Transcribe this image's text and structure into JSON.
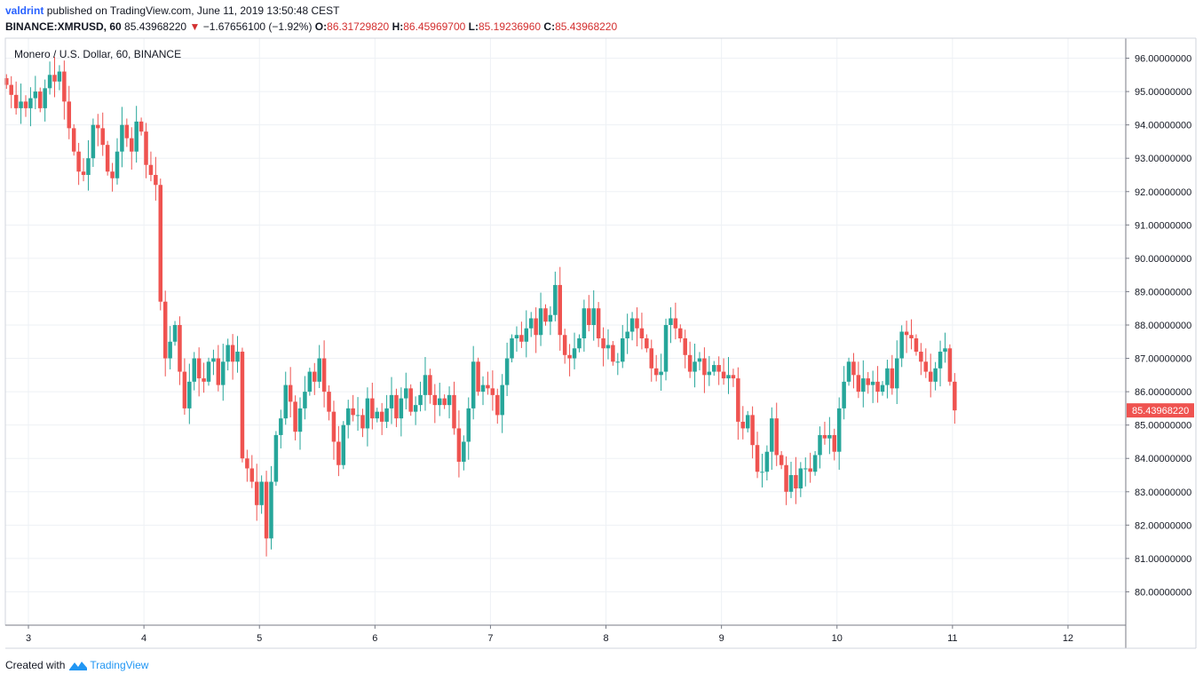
{
  "header": {
    "author": "valdrint",
    "published_text": "published on TradingView.com, June 11, 2019 13:50:48 CEST",
    "symbol": "BINANCE:XMRUSD, 60",
    "last_price": "85.43968220",
    "change_arrow": "▼",
    "change": "−1.67656100 (−1.92%)",
    "o_label": "O:",
    "o_value": "86.31729820",
    "h_label": "H:",
    "h_value": "86.45969700",
    "l_label": "L:",
    "l_value": "85.19236960",
    "c_label": "C:",
    "c_value": "85.43968220"
  },
  "footer": {
    "created_with": "Created with",
    "brand": "TradingView"
  },
  "colors": {
    "up": "#26a69a",
    "down": "#ef5350",
    "grid": "#eef1f5",
    "axis": "#787b86",
    "price_tag": "#ef5350"
  },
  "chart_data": {
    "type": "candlestick",
    "title": "Monero / U.S. Dollar, 60, BINANCE",
    "xlabel": "",
    "ylabel": "",
    "x_ticks": [
      "3",
      "4",
      "5",
      "6",
      "7",
      "8",
      "9",
      "10",
      "11",
      "12"
    ],
    "y_ticks": [
      "80.00000000",
      "81.00000000",
      "82.00000000",
      "83.00000000",
      "84.00000000",
      "85.00000000",
      "86.00000000",
      "87.00000000",
      "88.00000000",
      "89.00000000",
      "90.00000000",
      "91.00000000",
      "92.00000000",
      "93.00000000",
      "94.00000000",
      "95.00000000",
      "96.00000000"
    ],
    "ylim": [
      79,
      96.6
    ],
    "xlim": [
      2.8,
      12.5
    ],
    "grid": true,
    "last_price_label": "85.43968220",
    "last_price": 85.4397,
    "candles_hourly_close": [
      95.2,
      94.9,
      94.5,
      94.7,
      94.5,
      94.8,
      95.0,
      94.5,
      95.1,
      95.5,
      95.3,
      95.6,
      94.7,
      93.9,
      93.2,
      92.6,
      92.5,
      93.0,
      94.0,
      93.9,
      93.4,
      92.6,
      92.4,
      93.2,
      94.0,
      93.6,
      93.2,
      94.1,
      93.8,
      92.8,
      92.5,
      92.2,
      88.7,
      87.0,
      87.5,
      88.0,
      86.6,
      85.5,
      86.3,
      87.0,
      86.4,
      86.3,
      86.9,
      87.0,
      86.2,
      86.9,
      87.4,
      86.9,
      87.2,
      84.0,
      83.7,
      83.3,
      82.6,
      83.3,
      81.6,
      83.3,
      84.7,
      85.2,
      86.2,
      85.7,
      84.8,
      85.5,
      86.0,
      86.6,
      86.3,
      87.0,
      86.0,
      85.4,
      84.5,
      83.8,
      85.0,
      85.5,
      85.3,
      85.3,
      84.9,
      85.8,
      85.2,
      85.4,
      85.1,
      85.5,
      85.9,
      85.2,
      85.8,
      86.1,
      85.4,
      85.6,
      85.9,
      86.5,
      85.9,
      85.6,
      85.8,
      85.6,
      85.9,
      84.9,
      83.9,
      84.5,
      85.5,
      86.9,
      86.0,
      86.2,
      86.1,
      85.9,
      85.3,
      86.2,
      87.0,
      87.6,
      87.7,
      87.5,
      87.9,
      88.2,
      87.7,
      88.5,
      88.1,
      88.3,
      89.2,
      87.7,
      87.1,
      87.0,
      87.3,
      87.6,
      88.5,
      88.0,
      88.5,
      87.6,
      87.3,
      87.4,
      86.9,
      86.9,
      87.6,
      87.8,
      88.2,
      87.9,
      87.6,
      87.3,
      86.7,
      86.5,
      86.6,
      88.0,
      88.2,
      87.9,
      87.6,
      87.1,
      86.6,
      86.9,
      87.0,
      86.5,
      86.6,
      86.8,
      86.6,
      86.4,
      86.5,
      86.4,
      85.1,
      84.9,
      85.3,
      84.4,
      83.6,
      83.6,
      84.2,
      85.2,
      84.1,
      83.8,
      83.0,
      83.5,
      83.1,
      83.7,
      83.7,
      83.6,
      84.1,
      84.7,
      84.6,
      84.7,
      84.2,
      85.5,
      86.3,
      86.9,
      86.5,
      86.0,
      86.4,
      86.2,
      86.3,
      86.0,
      86.2,
      86.7,
      86.1,
      87.0,
      87.8,
      87.7,
      87.6,
      87.2,
      86.9,
      86.6,
      86.3,
      86.7,
      87.2,
      87.3,
      86.3,
      85.44
    ],
    "first_candle_x": 2.81,
    "candle_interval_days": 0.04167
  }
}
